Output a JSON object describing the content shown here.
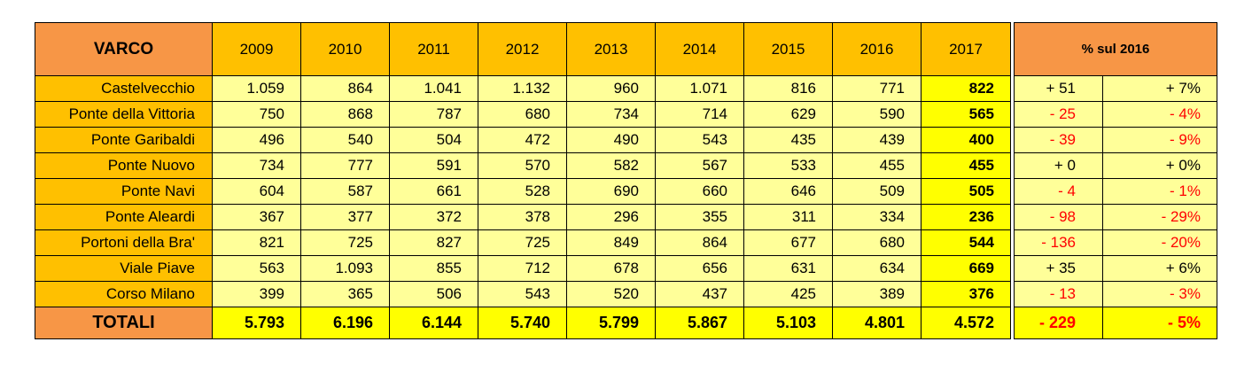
{
  "chart_data": {
    "type": "table",
    "header_label": "VARCO",
    "years": [
      "2009",
      "2010",
      "2011",
      "2012",
      "2013",
      "2014",
      "2015",
      "2016",
      "2017"
    ],
    "rows": [
      {
        "label": "Castelvecchio",
        "values": [
          "1.059",
          "864",
          "1.041",
          "1.132",
          "960",
          "1.071",
          "816",
          "771",
          "822"
        ],
        "delta": "+ 51",
        "pct": "+ 7%"
      },
      {
        "label": "Ponte della Vittoria",
        "values": [
          "750",
          "868",
          "787",
          "680",
          "734",
          "714",
          "629",
          "590",
          "565"
        ],
        "delta": "- 25",
        "pct": "- 4%"
      },
      {
        "label": "Ponte Garibaldi",
        "values": [
          "496",
          "540",
          "504",
          "472",
          "490",
          "543",
          "435",
          "439",
          "400"
        ],
        "delta": "- 39",
        "pct": "- 9%"
      },
      {
        "label": "Ponte Nuovo",
        "values": [
          "734",
          "777",
          "591",
          "570",
          "582",
          "567",
          "533",
          "455",
          "455"
        ],
        "delta": "+ 0",
        "pct": "+ 0%"
      },
      {
        "label": "Ponte Navi",
        "values": [
          "604",
          "587",
          "661",
          "528",
          "690",
          "660",
          "646",
          "509",
          "505"
        ],
        "delta": "- 4",
        "pct": "- 1%"
      },
      {
        "label": "Ponte Aleardi",
        "values": [
          "367",
          "377",
          "372",
          "378",
          "296",
          "355",
          "311",
          "334",
          "236"
        ],
        "delta": "- 98",
        "pct": "- 29%"
      },
      {
        "label": "Portoni della Bra'",
        "values": [
          "821",
          "725",
          "827",
          "725",
          "849",
          "864",
          "677",
          "680",
          "544"
        ],
        "delta": "- 136",
        "pct": "- 20%"
      },
      {
        "label": "Viale Piave",
        "values": [
          "563",
          "1.093",
          "855",
          "712",
          "678",
          "656",
          "631",
          "634",
          "669"
        ],
        "delta": "+ 35",
        "pct": "+ 6%"
      },
      {
        "label": "Corso Milano",
        "values": [
          "399",
          "365",
          "506",
          "543",
          "520",
          "437",
          "425",
          "389",
          "376"
        ],
        "delta": "- 13",
        "pct": "- 3%"
      }
    ],
    "totals": {
      "label": "TOTALI",
      "values": [
        "5.793",
        "6.196",
        "6.144",
        "5.740",
        "5.799",
        "5.867",
        "5.103",
        "4.801",
        "4.572"
      ],
      "delta": "- 229",
      "pct": "- 5%"
    },
    "pct_header": "% sul 2016"
  },
  "colors": {
    "header_orange": "#f79646",
    "header_gold": "#ffc000",
    "cell_light_yellow": "#ffff99",
    "highlight_yellow": "#ffff00",
    "negative_red": "#ff0000"
  }
}
